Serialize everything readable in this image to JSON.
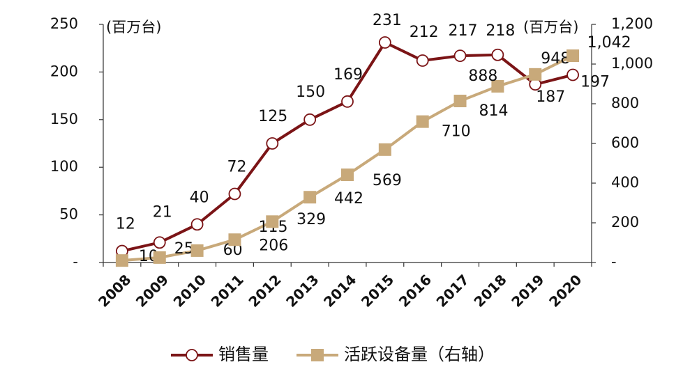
{
  "chart_data": {
    "type": "line",
    "categories": [
      "2008",
      "2009",
      "2010",
      "2011",
      "2012",
      "2013",
      "2014",
      "2015",
      "2016",
      "2017",
      "2018",
      "2019",
      "2020"
    ],
    "y_label": "(百万台)",
    "y2_label": "(百万台)",
    "ylim": [
      0,
      250
    ],
    "yticks": [
      {
        "value": 0,
        "label": "-"
      },
      50,
      100,
      150,
      200,
      250
    ],
    "y2lim": [
      0,
      1200
    ],
    "y2ticks": [
      {
        "value": 0,
        "label": "-"
      },
      200,
      400,
      600,
      800,
      {
        "value": 1000,
        "label": "1,000"
      },
      {
        "value": 1200,
        "label": "1,200"
      }
    ],
    "legend": "bottom",
    "series": [
      {
        "name": "销售量",
        "color": "#7b1416",
        "marker": "circle",
        "values": [
          12,
          21,
          40,
          72,
          125,
          150,
          169,
          231,
          212,
          217,
          218,
          187,
          197
        ]
      },
      {
        "name": "活跃设备量（右轴）",
        "color": "#c8a97a",
        "marker": "square",
        "axis": "y2",
        "values": [
          10,
          25,
          60,
          115,
          206,
          329,
          442,
          569,
          710,
          814,
          888,
          948,
          1042
        ],
        "value_labels": [
          "10",
          "25",
          "60",
          "115",
          "206",
          "329",
          "442",
          "569",
          "710",
          "814",
          "888",
          "948",
          "1,042"
        ]
      }
    ]
  }
}
